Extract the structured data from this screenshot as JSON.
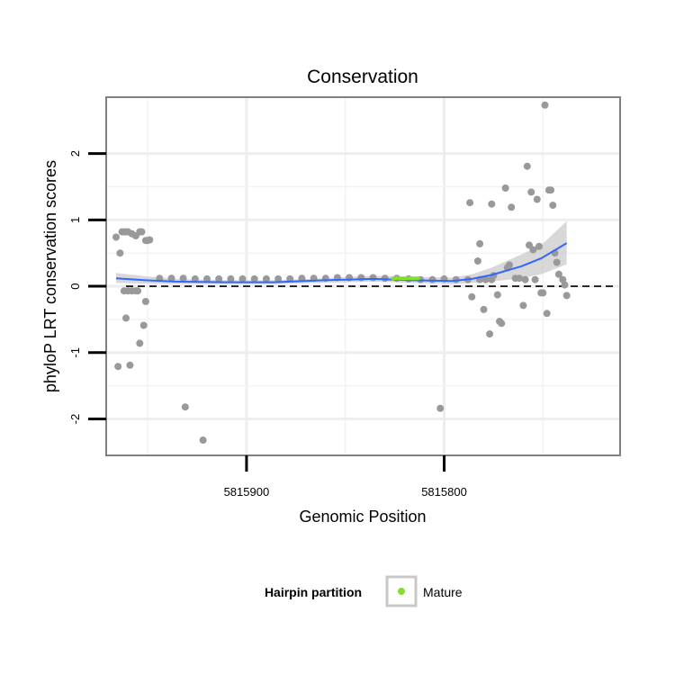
{
  "chart_data": {
    "type": "scatter",
    "title": "Conservation",
    "xlabel": "Genomic Position",
    "ylabel": "phyloP LRT conservation scores",
    "x_reversed": true,
    "xlim": [
      5815971,
      5815711
    ],
    "ylim": [
      -2.55,
      2.85
    ],
    "x_ticks": [
      5815900,
      5815800
    ],
    "x_tick_labels": [
      "5815900",
      "5815800"
    ],
    "y_ticks": [
      -2,
      -1,
      0,
      1,
      2
    ],
    "y_tick_labels": [
      "-2",
      "-1",
      "0",
      "1",
      "2"
    ],
    "grid": true,
    "reference_line": {
      "y": 0,
      "style": "dashed",
      "color": "#000000"
    },
    "series": [
      {
        "name": "",
        "color": "#999999",
        "points": [
          [
            5815966,
            0.74
          ],
          [
            5815964,
            0.5
          ],
          [
            5815965,
            -1.21
          ],
          [
            5815963,
            0.82
          ],
          [
            5815962,
            0.82
          ],
          [
            5815961,
            0.82
          ],
          [
            5815960,
            0.82
          ],
          [
            5815958,
            0.79
          ],
          [
            5815956,
            0.76
          ],
          [
            5815954,
            0.82
          ],
          [
            5815953,
            0.82
          ],
          [
            5815951,
            0.69
          ],
          [
            5815950,
            0.69
          ],
          [
            5815949,
            0.7
          ],
          [
            5815962,
            -0.07
          ],
          [
            5815960,
            -0.07
          ],
          [
            5815958,
            -0.07
          ],
          [
            5815956,
            -0.07
          ],
          [
            5815955,
            -0.07
          ],
          [
            5815961,
            -0.48
          ],
          [
            5815959,
            -1.19
          ],
          [
            5815954,
            -0.86
          ],
          [
            5815952,
            -0.59
          ],
          [
            5815951,
            -0.23
          ],
          [
            5815944,
            0.12
          ],
          [
            5815938,
            0.12
          ],
          [
            5815932,
            0.12
          ],
          [
            5815926,
            0.11
          ],
          [
            5815920,
            0.11
          ],
          [
            5815914,
            0.11
          ],
          [
            5815908,
            0.11
          ],
          [
            5815902,
            0.11
          ],
          [
            5815896,
            0.11
          ],
          [
            5815890,
            0.11
          ],
          [
            5815884,
            0.11
          ],
          [
            5815878,
            0.11
          ],
          [
            5815872,
            0.12
          ],
          [
            5815866,
            0.12
          ],
          [
            5815860,
            0.12
          ],
          [
            5815854,
            0.13
          ],
          [
            5815848,
            0.13
          ],
          [
            5815842,
            0.13
          ],
          [
            5815836,
            0.13
          ],
          [
            5815830,
            0.12
          ],
          [
            5815824,
            0.12
          ],
          [
            5815818,
            0.11
          ],
          [
            5815812,
            0.1
          ],
          [
            5815806,
            0.1
          ],
          [
            5815800,
            0.11
          ],
          [
            5815794,
            0.1
          ],
          [
            5815788,
            0.1
          ],
          [
            5815782,
            0.1
          ],
          [
            5815776,
            0.1
          ],
          [
            5815931,
            -1.82
          ],
          [
            5815922,
            -2.32
          ],
          [
            5815802,
            -1.84
          ],
          [
            5815787,
            1.26
          ],
          [
            5815786,
            -0.16
          ],
          [
            5815783,
            0.38
          ],
          [
            5815782,
            0.64
          ],
          [
            5815780,
            -0.35
          ],
          [
            5815779,
            0.1
          ],
          [
            5815777,
            -0.72
          ],
          [
            5815776,
            1.24
          ],
          [
            5815775,
            0.16
          ],
          [
            5815773,
            -0.13
          ],
          [
            5815772,
            -0.53
          ],
          [
            5815771,
            -0.56
          ],
          [
            5815769,
            1.48
          ],
          [
            5815768,
            0.28
          ],
          [
            5815767,
            0.32
          ],
          [
            5815766,
            1.19
          ],
          [
            5815764,
            0.12
          ],
          [
            5815762,
            0.12
          ],
          [
            5815760,
            -0.29
          ],
          [
            5815759,
            0.1
          ],
          [
            5815758,
            1.81
          ],
          [
            5815757,
            0.62
          ],
          [
            5815756,
            1.42
          ],
          [
            5815755,
            0.55
          ],
          [
            5815754,
            0.1
          ],
          [
            5815753,
            1.31
          ],
          [
            5815752,
            0.6
          ],
          [
            5815751,
            -0.1
          ],
          [
            5815750,
            -0.1
          ],
          [
            5815749,
            2.73
          ],
          [
            5815748,
            -0.41
          ],
          [
            5815747,
            1.45
          ],
          [
            5815746,
            1.45
          ],
          [
            5815745,
            1.22
          ],
          [
            5815744,
            0.5
          ],
          [
            5815743,
            0.36
          ],
          [
            5815742,
            0.18
          ],
          [
            5815740,
            0.1
          ],
          [
            5815739,
            0.02
          ],
          [
            5815738,
            -0.14
          ]
        ]
      }
    ],
    "highlight": {
      "name": "Mature",
      "color": "#7ee22d",
      "x_range": [
        5815826,
        5815813
      ],
      "y": 0.12
    },
    "smooth": {
      "method": "loess",
      "color": "#3366ff",
      "ribbon_color": "#c8c8c8",
      "points": [
        [
          5815966,
          0.12,
          0.05,
          0.2
        ],
        [
          5815951,
          0.09,
          0.04,
          0.15
        ],
        [
          5815936,
          0.07,
          0.03,
          0.11
        ],
        [
          5815911,
          0.06,
          0.03,
          0.09
        ],
        [
          5815886,
          0.06,
          0.03,
          0.09
        ],
        [
          5815861,
          0.09,
          0.05,
          0.12
        ],
        [
          5815836,
          0.11,
          0.07,
          0.16
        ],
        [
          5815816,
          0.09,
          0.05,
          0.14
        ],
        [
          5815796,
          0.08,
          0.03,
          0.13
        ],
        [
          5815786,
          0.11,
          0.05,
          0.18
        ],
        [
          5815776,
          0.17,
          0.07,
          0.28
        ],
        [
          5815761,
          0.3,
          0.12,
          0.48
        ],
        [
          5815751,
          0.42,
          0.18,
          0.62
        ],
        [
          5815738,
          0.65,
          0.33,
          0.98
        ]
      ]
    },
    "legend": {
      "position": "bottom",
      "title": "Hairpin partition",
      "items": [
        {
          "label": "Mature",
          "color": "#7ee22d"
        }
      ]
    }
  }
}
